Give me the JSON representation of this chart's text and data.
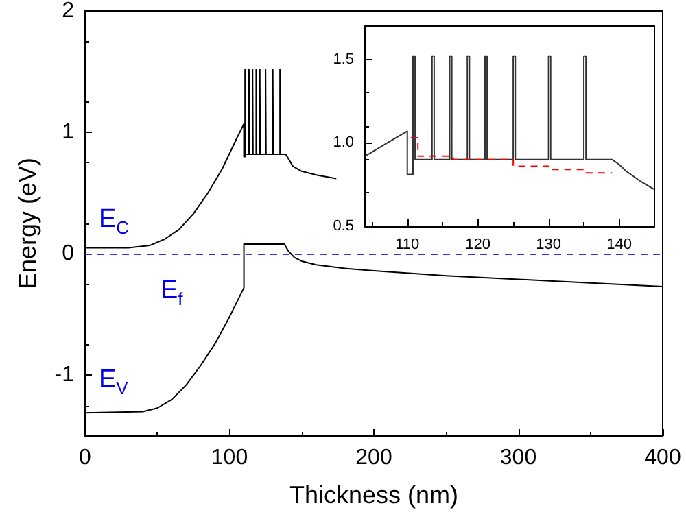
{
  "chart_data": [
    {
      "type": "line",
      "xlabel": "Thickness (nm)",
      "ylabel": "Energy (eV)",
      "xlim": [
        0,
        400
      ],
      "ylim": [
        -1.5,
        2
      ],
      "xticks": [
        0,
        100,
        200,
        300,
        400
      ],
      "yticks": [
        -1,
        0,
        1,
        2
      ],
      "series": [
        {
          "color": "#000000",
          "x": [
            0,
            30,
            45,
            55,
            65,
            75,
            85,
            95,
            105,
            110,
            110,
            110.8,
            110.8,
            111.1,
            111.1,
            113.5,
            113.5,
            113.8,
            113.8,
            116,
            116,
            116.3,
            116.3,
            118.5,
            118.5,
            118.8,
            118.8,
            121,
            121,
            121.3,
            121.3,
            125,
            125,
            125.3,
            125.3,
            130,
            130,
            130.3,
            130.3,
            135,
            135,
            135.3,
            135.3,
            139,
            141,
            144,
            150,
            160,
            174
          ],
          "values": [
            0.05,
            0.05,
            0.07,
            0.12,
            0.2,
            0.33,
            0.5,
            0.7,
            0.95,
            1.07,
            0.8,
            0.8,
            1.52,
            1.52,
            0.82,
            0.82,
            1.52,
            1.52,
            0.82,
            0.82,
            1.52,
            1.52,
            0.82,
            0.82,
            1.52,
            1.52,
            0.82,
            0.82,
            1.52,
            1.52,
            0.82,
            0.82,
            1.52,
            1.52,
            0.82,
            0.82,
            1.52,
            1.52,
            0.82,
            0.82,
            1.52,
            1.52,
            0.82,
            0.82,
            0.78,
            0.72,
            0.68,
            0.65,
            0.62
          ]
        },
        {
          "color": "#000000",
          "x": [
            0,
            40,
            50,
            60,
            70,
            80,
            90,
            100,
            110,
            110,
            138,
            141,
            145,
            150,
            160,
            180,
            200,
            250,
            300,
            350,
            400
          ],
          "values": [
            -1.31,
            -1.3,
            -1.27,
            -1.2,
            -1.08,
            -0.92,
            -0.74,
            -0.52,
            -0.28,
            0.08,
            0.08,
            0.02,
            -0.03,
            -0.06,
            -0.09,
            -0.12,
            -0.14,
            -0.18,
            -0.21,
            -0.24,
            -0.27
          ]
        }
      ],
      "ref_lines": [
        {
          "axis": "y",
          "value": 0,
          "color": "#3333ff",
          "line_style": "dashed"
        }
      ],
      "annotations": [
        "E$_{C}$",
        "E$_{f}$",
        "E$_{V}$"
      ]
    },
    {
      "type": "line",
      "xlim": [
        104,
        145
      ],
      "ylim": [
        0.5,
        1.7
      ],
      "xticks": [
        110,
        120,
        130,
        140
      ],
      "yticks": [
        0.5,
        {
          "value": 1,
          "label": "1.0"
        },
        1.5
      ],
      "series": [
        {
          "color": "#333333",
          "x": [
            104,
            106,
            108,
            110,
            110,
            110.8,
            110.8,
            111.1,
            111.1,
            113.5,
            113.5,
            113.8,
            113.8,
            116,
            116,
            116.3,
            116.3,
            118.5,
            118.5,
            118.8,
            118.8,
            121,
            121,
            121.3,
            121.3,
            125,
            125,
            125.3,
            125.3,
            130,
            130,
            130.3,
            130.3,
            135,
            135,
            135.3,
            135.3,
            139,
            140,
            141,
            142,
            143,
            145
          ],
          "values": [
            0.92,
            0.97,
            1.02,
            1.07,
            0.81,
            0.81,
            1.52,
            1.52,
            0.9,
            0.9,
            1.52,
            1.52,
            0.9,
            0.9,
            1.52,
            1.52,
            0.9,
            0.9,
            1.52,
            1.52,
            0.9,
            0.9,
            1.52,
            1.52,
            0.9,
            0.9,
            1.52,
            1.52,
            0.9,
            0.9,
            1.52,
            1.52,
            0.9,
            0.9,
            1.52,
            1.52,
            0.9,
            0.9,
            0.87,
            0.83,
            0.8,
            0.77,
            0.72
          ]
        },
        {
          "color": "#ff0000",
          "line_style": "dashed",
          "x": [
            110.5,
            111.5,
            111.5,
            116.5,
            116.5,
            125,
            125,
            130,
            130,
            135,
            135,
            139
          ],
          "values": [
            1.03,
            1.03,
            0.92,
            0.92,
            0.9,
            0.9,
            0.86,
            0.86,
            0.84,
            0.84,
            0.82,
            0.82
          ]
        }
      ]
    }
  ]
}
